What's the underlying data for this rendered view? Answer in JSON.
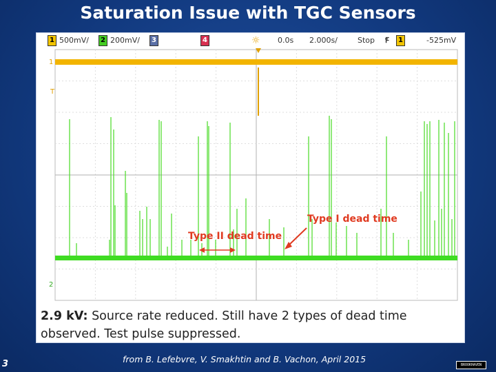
{
  "slide": {
    "title": "Saturation Issue with TGC Sensors",
    "page_number": "3",
    "credit": "from B. Lefebvre, V. Smakhtin and B. Vachon, April 2015",
    "logo_text": "BROOKHAVEN"
  },
  "scope": {
    "ch1": {
      "num": "1",
      "scale": "500mV/"
    },
    "ch2": {
      "num": "2",
      "scale": "200mV/"
    },
    "ch3": {
      "num": "3"
    },
    "ch4": {
      "num": "4"
    },
    "time_offset": "0.0s",
    "timebase": "2.000s/",
    "run_state": "Stop",
    "trigger_symbol": "Ꞙ",
    "trigger_channel": "1",
    "trigger_level": "-525mV",
    "marker_1": "1",
    "marker_t": "T",
    "marker_2": "2",
    "colors": {
      "ch1": "#f2b400",
      "ch2": "#44dd22",
      "annotation": "#e03a20"
    }
  },
  "annotations": {
    "type1": "Type I dead time",
    "type2": "Type II dead time"
  },
  "caption": {
    "bold": "2.9 kV:",
    "text": " Source rate reduced. Still have 2 types of dead time observed. Test pulse suppressed."
  }
}
